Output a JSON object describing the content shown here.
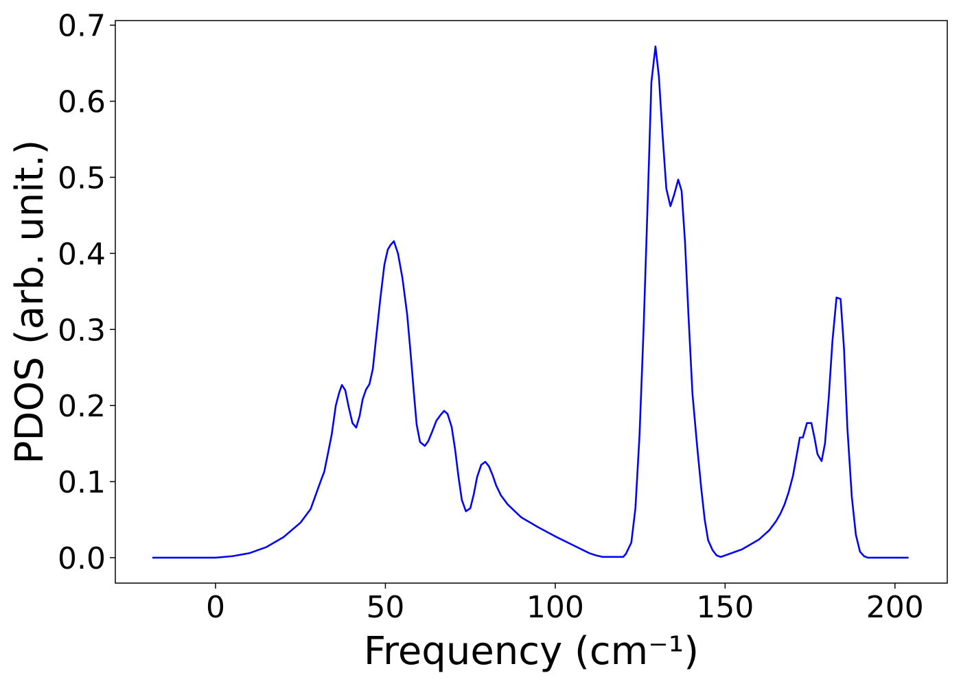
{
  "chart_data": {
    "type": "line",
    "xlabel": "Frequency (cm⁻¹)",
    "ylabel": "PDOS (arb. unit.)",
    "color": "#0000ff",
    "x": [
      -18.6,
      -10,
      0,
      5,
      10,
      15,
      20,
      25,
      28,
      30.9,
      32,
      33,
      34.2,
      35.4,
      36.4,
      37.2,
      38.2,
      39.2,
      40.3,
      41.4,
      42.4,
      43.3,
      44.3,
      45.3,
      46.3,
      47.3,
      48.5,
      49.7,
      50.7,
      51.5,
      52.5,
      53.7,
      55,
      56.4,
      57.4,
      58.4,
      59.2,
      60.2,
      61.6,
      62.6,
      63.8,
      65,
      66.3,
      67.3,
      68.3,
      69.5,
      70.5,
      71.5,
      72.5,
      73.7,
      75,
      76,
      77,
      78.2,
      79.4,
      80.5,
      81.6,
      82.6,
      84,
      86,
      90,
      95,
      100,
      105,
      110,
      112,
      114,
      120,
      120.8,
      122.4,
      123.6,
      124.8,
      126,
      127.3,
      128.3,
      129.5,
      130.5,
      131.6,
      132.7,
      133.9,
      135,
      136.2,
      137.2,
      138.2,
      139.2,
      140.4,
      141.8,
      143,
      144,
      145,
      146.3,
      147.5,
      148.7,
      150,
      155,
      160,
      163,
      165,
      166.3,
      167.5,
      168.7,
      170,
      171,
      172,
      172.9,
      174.1,
      175.4,
      176.3,
      177.2,
      178.4,
      179.4,
      180.5,
      181.6,
      182.8,
      184,
      185,
      186,
      187.3,
      188.5,
      189.7,
      190.9,
      192,
      195,
      204
    ],
    "values": [
      0,
      0,
      0,
      0.002,
      0.006,
      0.014,
      0.027,
      0.046,
      0.064,
      0.1,
      0.113,
      0.135,
      0.162,
      0.2,
      0.217,
      0.227,
      0.22,
      0.198,
      0.177,
      0.171,
      0.186,
      0.208,
      0.221,
      0.228,
      0.248,
      0.29,
      0.34,
      0.385,
      0.405,
      0.411,
      0.416,
      0.4,
      0.368,
      0.32,
      0.27,
      0.216,
      0.175,
      0.152,
      0.147,
      0.153,
      0.166,
      0.18,
      0.188,
      0.193,
      0.189,
      0.172,
      0.143,
      0.107,
      0.076,
      0.061,
      0.065,
      0.083,
      0.106,
      0.122,
      0.126,
      0.12,
      0.108,
      0.095,
      0.082,
      0.07,
      0.053,
      0.04,
      0.028,
      0.017,
      0.006,
      0.003,
      0.001,
      0.001,
      0.005,
      0.02,
      0.065,
      0.16,
      0.3,
      0.48,
      0.625,
      0.672,
      0.633,
      0.555,
      0.485,
      0.462,
      0.477,
      0.497,
      0.482,
      0.415,
      0.32,
      0.215,
      0.145,
      0.09,
      0.05,
      0.023,
      0.01,
      0.003,
      0.001,
      0.003,
      0.011,
      0.024,
      0.036,
      0.048,
      0.058,
      0.07,
      0.086,
      0.108,
      0.133,
      0.158,
      0.158,
      0.177,
      0.177,
      0.158,
      0.136,
      0.127,
      0.15,
      0.21,
      0.285,
      0.342,
      0.34,
      0.275,
      0.17,
      0.08,
      0.03,
      0.008,
      0.002,
      0,
      0,
      0
    ],
    "xlim": [
      -29.5,
      215.4
    ],
    "ylim": [
      -0.0334,
      0.706
    ],
    "xticks": [
      0,
      50,
      100,
      150,
      200
    ],
    "yticks": [
      {
        "value": 0,
        "label": "0.0"
      },
      0.1,
      0.2,
      0.3,
      0.4,
      0.5,
      0.6,
      0.7
    ]
  }
}
